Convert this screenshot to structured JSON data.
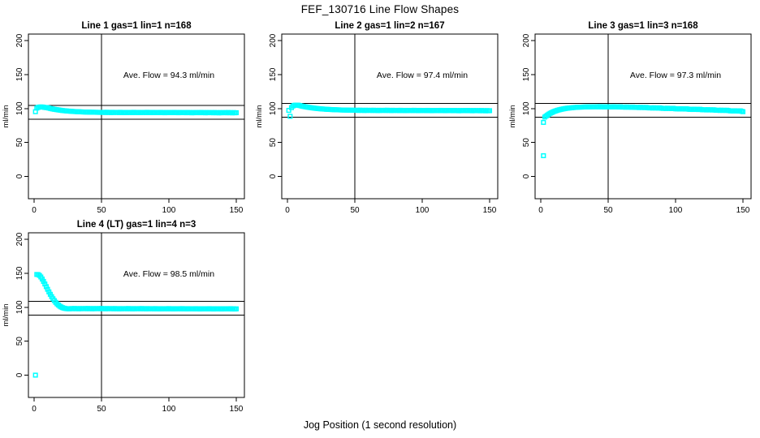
{
  "page": {
    "title": "FEF_130716  Line Flow Shapes",
    "xlabel": "Jog Position (1 second resolution)",
    "background": "#ffffff",
    "point_color": "#00FFFF",
    "line_color": "#000000"
  },
  "chart_data": [
    {
      "type": "scatter",
      "title": "Line 1 gas=1 lin=1 n=168",
      "annotation": "Ave. Flow =  94.3  ml/min",
      "ave_flow": 94.3,
      "ylabel": "ml/min",
      "xlim": [
        0,
        150
      ],
      "ylim": [
        0,
        200
      ],
      "xticks": [
        0,
        50,
        100,
        150
      ],
      "yticks": [
        0,
        50,
        100,
        150,
        200
      ],
      "vline_x": 50,
      "hlines": [
        104.3,
        84.3
      ],
      "grid": false,
      "legend": "none",
      "series": {
        "x_start": 1,
        "x_step": 1,
        "y": [
          95.3,
          100.6,
          101.6,
          102.1,
          102.3,
          102.2,
          101.9,
          101.5,
          101.3,
          101.1,
          100.6,
          100.1,
          99.6,
          99.2,
          98.8,
          98.5,
          98.2,
          97.9,
          97.6,
          97.3,
          97.0,
          96.8,
          96.6,
          96.4,
          96.2,
          96.1,
          95.9,
          95.8,
          95.6,
          95.5,
          95.4,
          95.3,
          95.2,
          95.1,
          95.0,
          94.9,
          94.8,
          94.8,
          94.7,
          94.7,
          94.6,
          94.5,
          94.5,
          94.4,
          94.4,
          94.4,
          94.3,
          94.3,
          94.3,
          94.3,
          94.2,
          94.4,
          94.0,
          94.5,
          94.1,
          94.3,
          93.9,
          94.4,
          94.0,
          94.3,
          94.2,
          94.3,
          93.9,
          94.4,
          94.0,
          94.2,
          93.8,
          94.3,
          93.9,
          94.2,
          94.1,
          94.3,
          93.9,
          94.4,
          94.0,
          94.2,
          93.8,
          94.3,
          93.9,
          94.2,
          94.1,
          94.3,
          93.9,
          94.4,
          94.0,
          94.2,
          93.8,
          94.3,
          93.9,
          94.2,
          94.0,
          94.2,
          93.8,
          94.3,
          93.9,
          94.1,
          93.7,
          94.2,
          93.8,
          94.1,
          94.0,
          94.2,
          93.8,
          94.3,
          93.9,
          94.1,
          93.7,
          94.2,
          93.8,
          94.1,
          93.9,
          94.1,
          93.7,
          94.2,
          93.8,
          94.0,
          93.6,
          94.1,
          93.7,
          94.0,
          93.9,
          94.1,
          93.7,
          94.2,
          93.8,
          94.0,
          93.6,
          94.1,
          93.7,
          94.0,
          93.8,
          94.0,
          93.6,
          94.1,
          93.7,
          93.9,
          93.5,
          94.0,
          93.6,
          93.9,
          93.8,
          94.0,
          93.6,
          94.1,
          93.7,
          93.9,
          93.5,
          94.0,
          93.6,
          93.8
        ]
      },
      "extra_points": []
    },
    {
      "type": "scatter",
      "title": "Line 2 gas=1 lin=2 n=167",
      "annotation": "Ave. Flow =  97.4  ml/min",
      "ave_flow": 97.4,
      "ylabel": "ml/min",
      "xlim": [
        0,
        150
      ],
      "ylim": [
        0,
        200
      ],
      "xticks": [
        0,
        50,
        100,
        150
      ],
      "yticks": [
        0,
        50,
        100,
        150,
        200
      ],
      "vline_x": 50,
      "hlines": [
        107.4,
        87.4
      ],
      "grid": false,
      "legend": "none",
      "series": {
        "x_start": 1,
        "x_step": 1,
        "y": [
          97.2,
          88.5,
          101.2,
          103.6,
          104.6,
          104.9,
          105.0,
          104.9,
          104.4,
          103.9,
          103.4,
          103.0,
          102.6,
          102.3,
          101.9,
          101.6,
          101.3,
          101.0,
          100.7,
          100.5,
          100.2,
          100.0,
          99.8,
          99.6,
          99.4,
          99.3,
          99.1,
          99.0,
          98.8,
          98.7,
          98.6,
          98.5,
          98.4,
          98.3,
          98.2,
          98.1,
          98.0,
          98.0,
          97.9,
          97.8,
          97.8,
          97.7,
          97.7,
          97.6,
          97.6,
          97.5,
          97.5,
          97.5,
          97.4,
          97.4,
          97.3,
          97.5,
          97.1,
          97.6,
          97.2,
          97.4,
          97.0,
          97.5,
          97.1,
          97.4,
          97.2,
          97.4,
          97.0,
          97.5,
          97.1,
          97.3,
          96.9,
          97.4,
          97.0,
          97.3,
          97.2,
          97.4,
          97.0,
          97.5,
          97.1,
          97.3,
          96.9,
          97.4,
          97.0,
          97.3,
          97.1,
          97.3,
          96.9,
          97.4,
          97.0,
          97.2,
          96.8,
          97.3,
          96.9,
          97.2,
          97.1,
          97.3,
          96.9,
          97.4,
          97.0,
          97.2,
          96.8,
          97.3,
          96.9,
          97.2,
          97.0,
          97.2,
          96.8,
          97.3,
          96.9,
          97.1,
          96.7,
          97.2,
          96.8,
          97.1,
          97.0,
          97.2,
          96.8,
          97.3,
          96.9,
          97.1,
          96.7,
          97.2,
          96.8,
          97.1,
          96.9,
          97.1,
          96.7,
          97.2,
          96.8,
          97.0,
          96.6,
          97.1,
          96.7,
          97.0,
          96.9,
          97.1,
          96.7,
          97.2,
          96.8,
          97.0,
          96.6,
          97.1,
          96.7,
          97.0,
          96.8,
          97.0,
          96.6,
          97.1,
          96.7,
          96.9,
          96.5,
          97.0,
          96.6,
          96.8
        ]
      },
      "extra_points": []
    },
    {
      "type": "scatter",
      "title": "Line 3 gas=1 lin=3 n=168",
      "annotation": "Ave. Flow =  97.3  ml/min",
      "ave_flow": 97.3,
      "ylabel": "ml/min",
      "xlim": [
        0,
        150
      ],
      "ylim": [
        0,
        200
      ],
      "xticks": [
        0,
        50,
        100,
        150
      ],
      "yticks": [
        0,
        50,
        100,
        150,
        200
      ],
      "vline_x": 50,
      "hlines": [
        107.3,
        87.3
      ],
      "grid": false,
      "legend": "none",
      "series": {
        "x_start": 2,
        "x_step": 1,
        "y": [
          79.5,
          87.4,
          88.9,
          90.4,
          91.7,
          92.9,
          93.9,
          94.8,
          95.7,
          96.4,
          97.1,
          97.7,
          98.2,
          98.7,
          99.1,
          99.5,
          99.9,
          100.2,
          100.5,
          100.7,
          100.9,
          101.1,
          101.3,
          101.5,
          101.6,
          101.8,
          101.9,
          102.0,
          102.0,
          102.1,
          102.2,
          102.2,
          102.3,
          102.4,
          102.4,
          102.4,
          102.5,
          102.5,
          102.5,
          102.5,
          102.7,
          102.3,
          102.8,
          102.4,
          102.6,
          102.2,
          102.7,
          102.3,
          102.6,
          102.4,
          102.6,
          102.2,
          102.7,
          102.3,
          102.3,
          102.5,
          102.1,
          102.6,
          102.1,
          102.0,
          102.2,
          101.8,
          102.3,
          101.9,
          102.1,
          101.7,
          102.2,
          101.8,
          101.6,
          101.5,
          101.7,
          101.3,
          101.8,
          101.4,
          101.6,
          101.2,
          101.7,
          101.3,
          100.9,
          100.8,
          101.0,
          100.6,
          101.1,
          100.7,
          100.9,
          100.5,
          101.0,
          100.6,
          100.2,
          100.1,
          100.3,
          99.9,
          100.4,
          100.0,
          100.2,
          99.8,
          100.3,
          99.9,
          99.5,
          99.4,
          99.6,
          99.2,
          99.7,
          99.3,
          99.5,
          99.1,
          99.6,
          99.2,
          98.8,
          98.7,
          98.9,
          98.5,
          99.0,
          98.6,
          98.8,
          98.4,
          98.9,
          98.5,
          98.1,
          98.0,
          98.2,
          97.8,
          98.3,
          97.9,
          98.1,
          97.7,
          98.2,
          97.8,
          97.4,
          97.3,
          97.5,
          97.1,
          97.6,
          97.2,
          97.4,
          97.0,
          97.5,
          97.1,
          96.7,
          96.4,
          96.6,
          96.2,
          96.7,
          96.3,
          96.5,
          96.1,
          96.6,
          95.9,
          95.3
        ]
      },
      "extra_points": [
        [
          2,
          30.5
        ]
      ]
    },
    {
      "type": "scatter",
      "title": "Line 4 (LT) gas=1 lin=4 n=3",
      "annotation": "Ave. Flow =  98.5  ml/min",
      "ave_flow": 98.5,
      "ylabel": "ml/min",
      "xlim": [
        0,
        150
      ],
      "ylim": [
        0,
        200
      ],
      "xticks": [
        0,
        50,
        100,
        150
      ],
      "yticks": [
        0,
        50,
        100,
        150,
        200
      ],
      "vline_x": 50,
      "hlines": [
        108.5,
        88.5
      ],
      "grid": false,
      "legend": "none",
      "series": {
        "x_start": 1,
        "x_step": 1,
        "y": [
          0.0,
          148.2,
          148.0,
          146.8,
          144.5,
          141.5,
          138.0,
          134.2,
          130.3,
          126.4,
          122.6,
          119.0,
          115.6,
          112.5,
          109.7,
          107.2,
          105.0,
          103.2,
          101.6,
          100.4,
          99.4,
          98.7,
          98.2,
          97.9,
          97.7,
          97.6,
          97.9,
          98.1,
          97.7,
          98.2,
          97.8,
          98.0,
          97.6,
          98.1,
          97.7,
          98.0,
          97.9,
          98.1,
          97.7,
          98.2,
          97.8,
          98.0,
          97.6,
          98.1,
          97.7,
          98.0,
          97.9,
          98.1,
          97.7,
          98.2,
          97.8,
          98.0,
          97.6,
          98.1,
          97.7,
          98.0,
          97.8,
          98.0,
          97.6,
          98.1,
          97.7,
          97.9,
          97.5,
          98.0,
          97.6,
          97.9,
          97.8,
          98.0,
          97.6,
          98.1,
          97.7,
          97.9,
          97.5,
          98.0,
          97.6,
          97.9,
          97.8,
          98.0,
          97.6,
          98.1,
          97.7,
          97.9,
          97.5,
          98.0,
          97.6,
          97.9,
          97.7,
          97.9,
          97.5,
          98.0,
          97.6,
          97.8,
          97.4,
          97.9,
          97.5,
          97.8,
          97.7,
          97.9,
          97.5,
          98.0,
          97.6,
          97.8,
          97.4,
          97.9,
          97.5,
          97.8,
          97.7,
          97.9,
          97.5,
          98.0,
          97.6,
          97.8,
          97.4,
          97.9,
          97.5,
          97.8,
          97.6,
          97.8,
          97.4,
          97.9,
          97.5,
          97.7,
          97.3,
          97.8,
          97.4,
          97.7,
          97.6,
          97.8,
          97.4,
          97.9,
          97.5,
          97.7,
          97.3,
          97.8,
          97.4,
          97.7,
          97.5,
          97.7,
          97.3,
          97.8,
          97.4,
          97.7,
          97.6,
          97.8,
          97.4,
          97.9,
          97.3,
          97.7,
          97.3,
          97.6
        ]
      },
      "extra_points": []
    }
  ]
}
